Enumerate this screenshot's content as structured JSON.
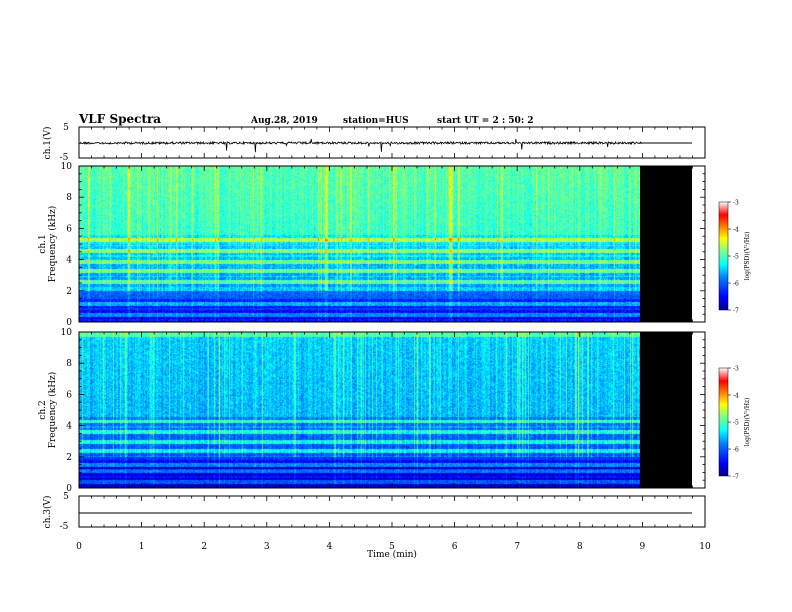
{
  "header": {
    "title": "VLF Spectra",
    "date": "Aug.28, 2019",
    "station": "station=HUS",
    "start": "start  UT =   2 : 50: 2"
  },
  "chart_data": [
    {
      "type": "line",
      "name": "ch1 waveform",
      "ylabel": "ch.1(V)",
      "ylim": [
        -5,
        5
      ],
      "yticks": [
        "5",
        "-5"
      ],
      "xlim": [
        0,
        10
      ],
      "data_end_min": 9.0
    },
    {
      "type": "heatmap",
      "name": "ch1 spectrogram",
      "ylabel": "ch.1\nFrequency  (kHz)",
      "ylim": [
        0,
        10
      ],
      "yticks": [
        0,
        2,
        4,
        6,
        8,
        10
      ],
      "xlim": [
        0,
        10
      ],
      "data_end_min": 9.0,
      "colorbar": {
        "label": "log(PSD)(V²/Hz)",
        "ticks": [
          "-3",
          "-4",
          "-5",
          "-6",
          "-7"
        ],
        "range": [
          -7,
          -3
        ]
      }
    },
    {
      "type": "heatmap",
      "name": "ch2 spectrogram",
      "ylabel": "ch.2\nFrequency  (kHz)",
      "ylim": [
        0,
        10
      ],
      "yticks": [
        0,
        2,
        4,
        6,
        8,
        10
      ],
      "xlim": [
        0,
        10
      ],
      "data_end_min": 9.0,
      "colorbar": {
        "label": "log(PSD)(V²/Hz)",
        "ticks": [
          "-3",
          "-4",
          "-5",
          "-6",
          "-7"
        ],
        "range": [
          -7,
          -3
        ]
      }
    },
    {
      "type": "line",
      "name": "ch3 waveform",
      "ylabel": "ch.3(V)",
      "ylim": [
        -5,
        5
      ],
      "yticks": [
        "5",
        "-5"
      ],
      "xlim": [
        0,
        10
      ],
      "constant_value": -0.5
    }
  ],
  "xaxis": {
    "label": "Time  (min)",
    "ticks": [
      "0",
      "1",
      "2",
      "3",
      "4",
      "5",
      "6",
      "7",
      "8",
      "9",
      "10"
    ]
  },
  "colors": {
    "blank_region": "#000000",
    "colormap": [
      "#00008f",
      "#0000ff",
      "#0080ff",
      "#00ffff",
      "#80ff80",
      "#ffff00",
      "#ff8000",
      "#ff0000",
      "#ffffff"
    ]
  }
}
